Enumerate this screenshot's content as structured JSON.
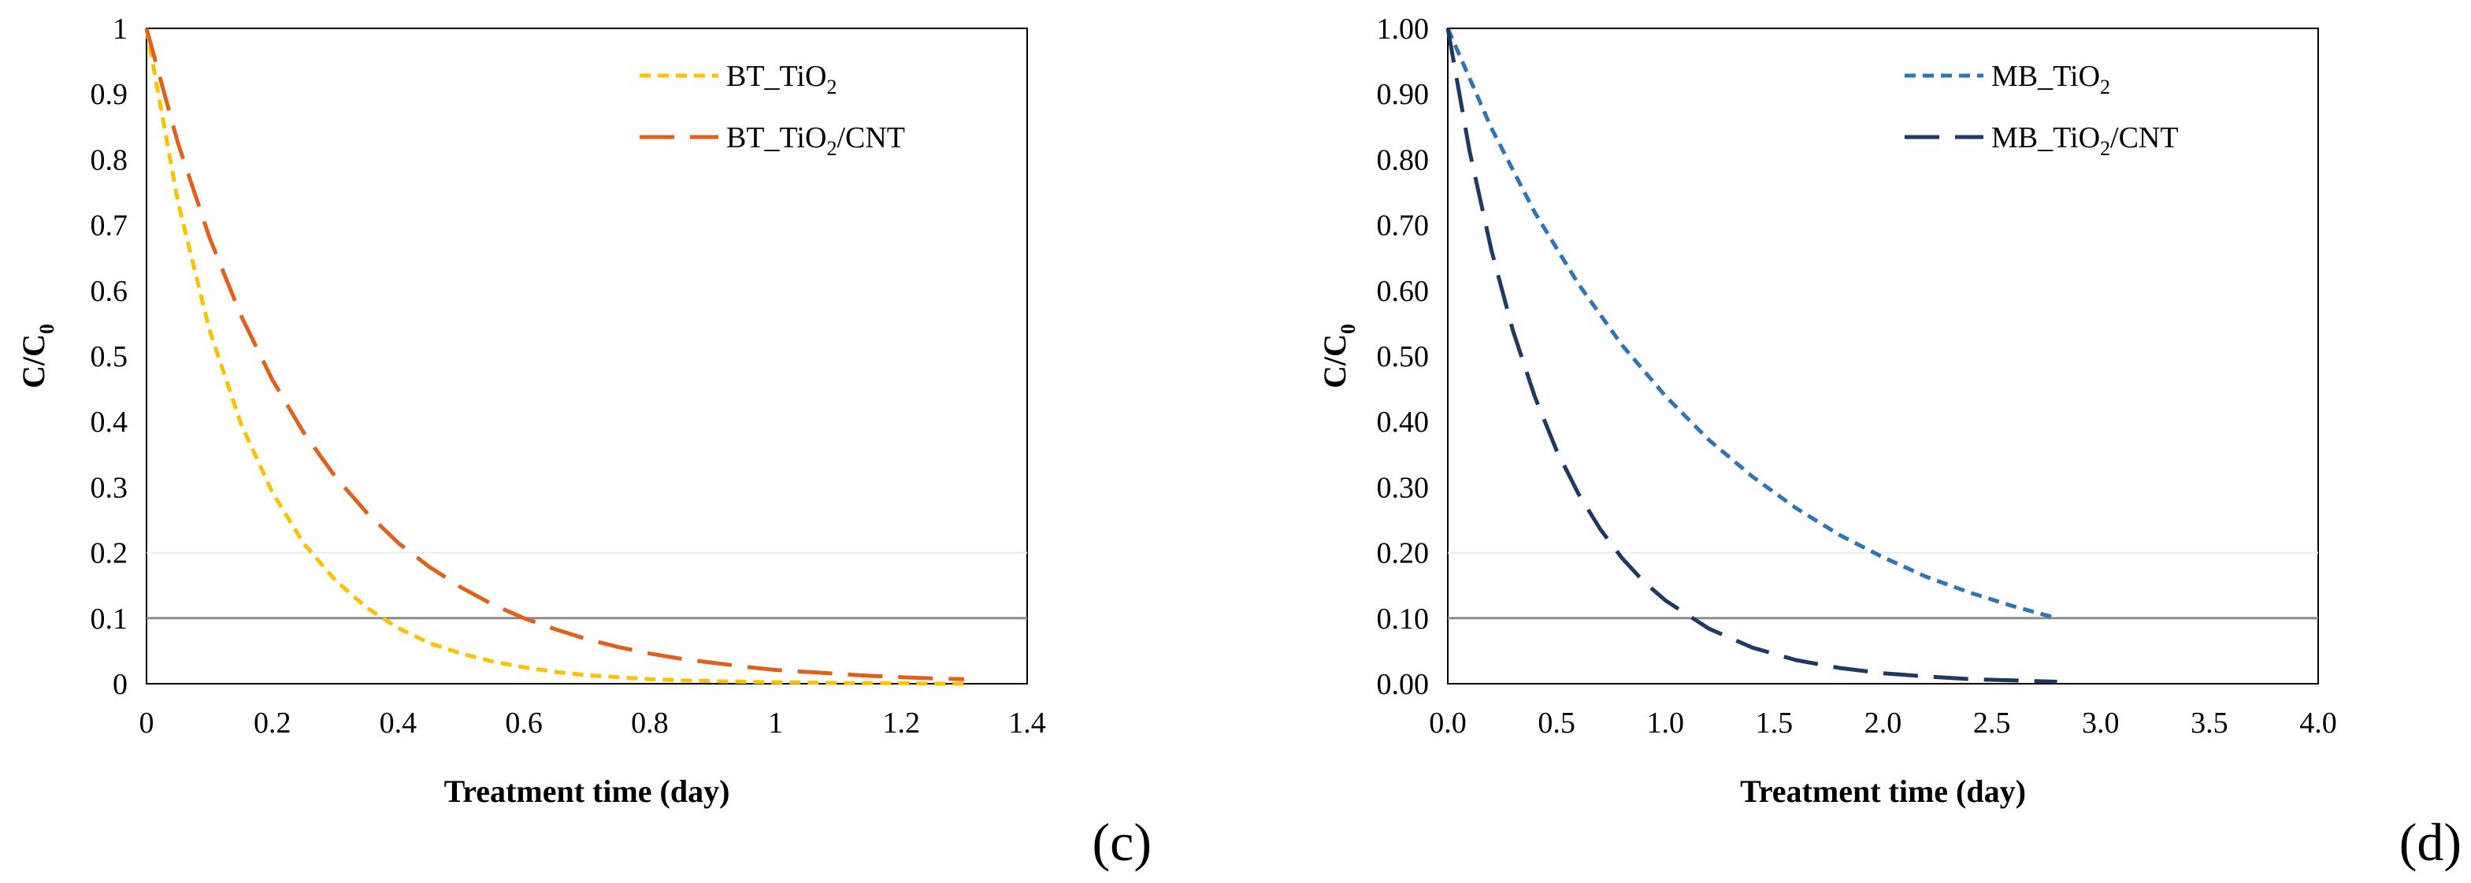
{
  "chart_data": [
    {
      "type": "line",
      "panel_label": "(c)",
      "title": "",
      "xlabel": "Treatment time (day)",
      "ylabel": "C/C",
      "ylabel_subscript": "0",
      "xlim": [
        0,
        1.4
      ],
      "ylim": [
        0,
        1
      ],
      "xticks": [
        0,
        0.2,
        0.4,
        0.6,
        0.8,
        1.0,
        1.2,
        1.4
      ],
      "xtick_labels": [
        "0",
        "0.2",
        "0.4",
        "0.6",
        "0.8",
        "1",
        "1.2",
        "1.4"
      ],
      "yticks": [
        0,
        0.1,
        0.2,
        0.3,
        0.4,
        0.5,
        0.6,
        0.7,
        0.8,
        0.9,
        1.0
      ],
      "ytick_labels": [
        "0",
        "0.1",
        "0.2",
        "0.3",
        "0.4",
        "0.5",
        "0.6",
        "0.7",
        "0.8",
        "0.9",
        "1"
      ],
      "gridlines": [
        0.2
      ],
      "reference_line": 0.1,
      "legend_position": "top-right",
      "series": [
        {
          "name": "BT_TiO2",
          "legend_prefix": "BT_TiO",
          "legend_sub": "2",
          "legend_suffix": "",
          "color": "#FFC000",
          "dash": "short",
          "x": [
            0,
            0.05,
            0.1,
            0.15,
            0.2,
            0.25,
            0.3,
            0.35,
            0.4,
            0.45,
            0.5,
            0.55,
            0.6,
            0.65,
            0.7,
            0.75,
            0.8,
            0.85,
            0.9,
            0.95,
            1.0,
            1.05,
            1.1,
            1.15,
            1.2,
            1.25,
            1.3
          ],
          "y": [
            1.0,
            0.735,
            0.54,
            0.397,
            0.292,
            0.214,
            0.158,
            0.116,
            0.085,
            0.062,
            0.046,
            0.034,
            0.025,
            0.018,
            0.013,
            0.01,
            0.007,
            0.005,
            0.004,
            0.003,
            0.002,
            0.002,
            0.001,
            0.001,
            0.001,
            0.0,
            0.0
          ]
        },
        {
          "name": "BT_TiO2/CNT",
          "legend_prefix": "BT_TiO",
          "legend_sub": "2",
          "legend_suffix": "/CNT",
          "color": "#E2611A",
          "dash": "long",
          "x": [
            0,
            0.05,
            0.1,
            0.15,
            0.2,
            0.25,
            0.3,
            0.35,
            0.4,
            0.45,
            0.5,
            0.55,
            0.6,
            0.65,
            0.7,
            0.75,
            0.8,
            0.85,
            0.9,
            0.95,
            1.0,
            1.05,
            1.1,
            1.15,
            1.2,
            1.25,
            1.3
          ],
          "y": [
            1.0,
            0.825,
            0.681,
            0.562,
            0.464,
            0.383,
            0.316,
            0.261,
            0.215,
            0.178,
            0.147,
            0.121,
            0.1,
            0.083,
            0.068,
            0.056,
            0.046,
            0.038,
            0.032,
            0.026,
            0.021,
            0.018,
            0.015,
            0.012,
            0.01,
            0.008,
            0.007
          ]
        }
      ]
    },
    {
      "type": "line",
      "panel_label": "(d)",
      "title": "",
      "xlabel": "Treatment time (day)",
      "ylabel": "C/C",
      "ylabel_subscript": "0",
      "xlim": [
        0,
        4.0
      ],
      "ylim": [
        0,
        1
      ],
      "xticks": [
        0,
        0.5,
        1.0,
        1.5,
        2.0,
        2.5,
        3.0,
        3.5,
        4.0
      ],
      "xtick_labels": [
        "0.0",
        "0.5",
        "1.0",
        "1.5",
        "2.0",
        "2.5",
        "3.0",
        "3.5",
        "4.0"
      ],
      "yticks": [
        0,
        0.1,
        0.2,
        0.3,
        0.4,
        0.5,
        0.6,
        0.7,
        0.8,
        0.9,
        1.0
      ],
      "ytick_labels": [
        "0.00",
        "0.10",
        "0.20",
        "0.30",
        "0.40",
        "0.50",
        "0.60",
        "0.70",
        "0.80",
        "0.90",
        "1.00"
      ],
      "gridlines": [
        0.2
      ],
      "reference_line": 0.1,
      "legend_position": "top-right",
      "series": [
        {
          "name": "MB_TiO2",
          "legend_prefix": "MB_TiO",
          "legend_sub": "2",
          "legend_suffix": "",
          "color": "#2E75B6",
          "dash": "short",
          "x": [
            0,
            0.2,
            0.4,
            0.6,
            0.8,
            1.0,
            1.2,
            1.4,
            1.6,
            1.8,
            2.0,
            2.2,
            2.4,
            2.6,
            2.8
          ],
          "y": [
            1.0,
            0.848,
            0.719,
            0.61,
            0.517,
            0.439,
            0.372,
            0.316,
            0.268,
            0.227,
            0.193,
            0.163,
            0.139,
            0.118,
            0.1
          ]
        },
        {
          "name": "MB_TiO2/CNT",
          "legend_prefix": "MB_TiO",
          "legend_sub": "2",
          "legend_suffix": "/CNT",
          "color": "#1F3864",
          "dash": "long",
          "x": [
            0,
            0.1,
            0.2,
            0.3,
            0.4,
            0.5,
            0.6,
            0.7,
            0.8,
            0.9,
            1.0,
            1.2,
            1.4,
            1.6,
            1.8,
            2.0,
            2.2,
            2.4,
            2.6,
            2.8
          ],
          "y": [
            1.0,
            0.813,
            0.662,
            0.538,
            0.438,
            0.356,
            0.29,
            0.236,
            0.192,
            0.156,
            0.127,
            0.084,
            0.055,
            0.036,
            0.024,
            0.016,
            0.011,
            0.007,
            0.005,
            0.003
          ]
        }
      ]
    }
  ]
}
